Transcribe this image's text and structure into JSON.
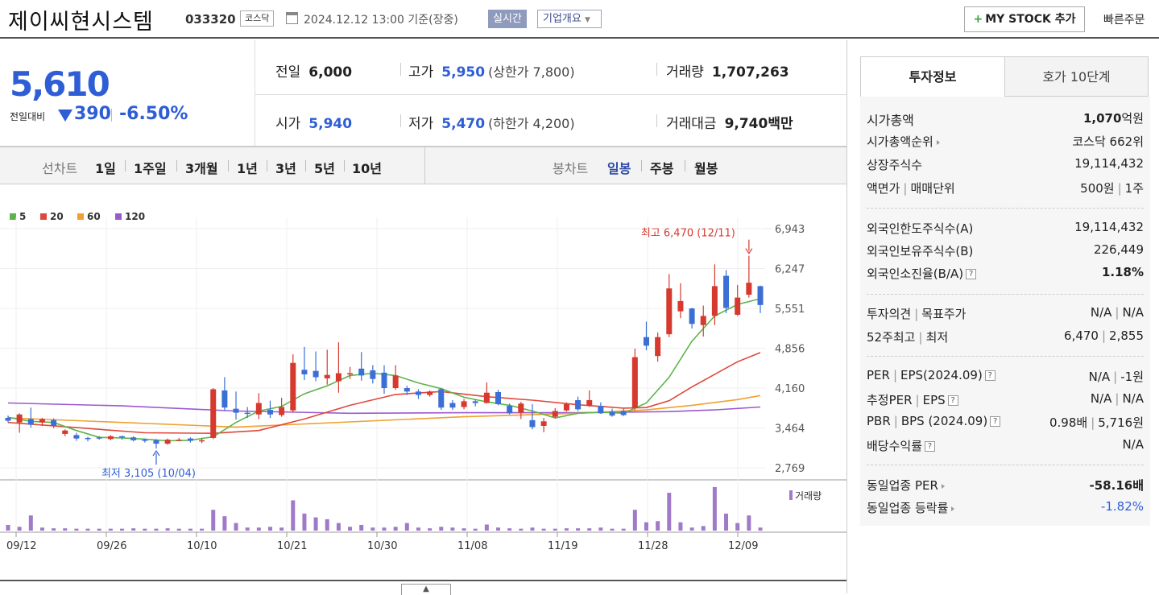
{
  "header": {
    "company_name": "제이씨현시스템",
    "code": "033320",
    "market": "코스닥",
    "date": "2024.12.12 13:00 기준(장중)",
    "realtime": "실시간",
    "company_info": "기업개요",
    "mystock": "MY STOCK 추가",
    "quick_order": "빠른주문"
  },
  "price": {
    "current": "5,610",
    "change_label": "전일대비",
    "change": "390",
    "change_pct": "-6.50%",
    "prev_close_label": "전일",
    "prev_close": "6,000",
    "high_label": "고가",
    "high": "5,950",
    "upper_limit": "(상한가 7,800)",
    "volume_label": "거래량",
    "volume": "1,707,263",
    "open_label": "시가",
    "open": "5,940",
    "low_label": "저가",
    "low": "5,470",
    "lower_limit": "(하한가 4,200)",
    "amount_label": "거래대금",
    "amount": "9,740",
    "amount_unit": "백만"
  },
  "period_bar": {
    "line_label": "선차트",
    "line_periods": [
      "1일",
      "1주일",
      "3개월",
      "1년",
      "3년",
      "5년",
      "10년"
    ],
    "candle_label": "봉차트",
    "candle_periods": [
      "일봉",
      "주봉",
      "월봉"
    ],
    "active_candle": "일봉"
  },
  "legend": [
    "5",
    "20",
    "60",
    "120"
  ],
  "legend_colors": [
    "#5db44b",
    "#e0473c",
    "#f0a030",
    "#9b59d0"
  ],
  "colors": {
    "up": "#d63a2f",
    "down": "#3b6fd6",
    "volume": "#a07ac8"
  },
  "chart_data": {
    "type": "candlestick",
    "title": "",
    "x_labels": [
      "09/12",
      "09/26",
      "10/10",
      "10/21",
      "10/30",
      "11/08",
      "11/19",
      "11/28",
      "12/09"
    ],
    "y_ticks": [
      "6,943",
      "6,247",
      "5,551",
      "4,856",
      "4,160",
      "3,464",
      "2,769"
    ],
    "ylim": [
      2769,
      6943
    ],
    "high_annotation": "최고 6,470 (12/11)",
    "low_annotation": "최저 3,105 (10/04)",
    "volume_label": "거래량",
    "candles": [
      {
        "o": 3640,
        "c": 3590,
        "h": 3680,
        "l": 3560,
        "v": 15
      },
      {
        "o": 3560,
        "c": 3700,
        "h": 3720,
        "l": 3380,
        "v": 10
      },
      {
        "o": 3620,
        "c": 3520,
        "h": 3820,
        "l": 3470,
        "v": 40
      },
      {
        "o": 3560,
        "c": 3620,
        "h": 3640,
        "l": 3500,
        "v": 8
      },
      {
        "o": 3600,
        "c": 3500,
        "h": 3630,
        "l": 3460,
        "v": 6
      },
      {
        "o": 3360,
        "c": 3420,
        "h": 3440,
        "l": 3320,
        "v": 6
      },
      {
        "o": 3340,
        "c": 3280,
        "h": 3380,
        "l": 3240,
        "v": 5
      },
      {
        "o": 3290,
        "c": 3270,
        "h": 3310,
        "l": 3230,
        "v": 5
      },
      {
        "o": 3300,
        "c": 3280,
        "h": 3320,
        "l": 3260,
        "v": 5
      },
      {
        "o": 3270,
        "c": 3320,
        "h": 3340,
        "l": 3250,
        "v": 5
      },
      {
        "o": 3320,
        "c": 3300,
        "h": 3330,
        "l": 3260,
        "v": 5
      },
      {
        "o": 3300,
        "c": 3250,
        "h": 3320,
        "l": 3230,
        "v": 6
      },
      {
        "o": 3260,
        "c": 3240,
        "h": 3280,
        "l": 3210,
        "v": 5
      },
      {
        "o": 3250,
        "c": 3190,
        "h": 3270,
        "l": 3105,
        "v": 5
      },
      {
        "o": 3190,
        "c": 3260,
        "h": 3280,
        "l": 3170,
        "v": 6
      },
      {
        "o": 3260,
        "c": 3260,
        "h": 3290,
        "l": 3240,
        "v": 5
      },
      {
        "o": 3280,
        "c": 3240,
        "h": 3300,
        "l": 3210,
        "v": 5
      },
      {
        "o": 3240,
        "c": 3250,
        "h": 3280,
        "l": 3200,
        "v": 5
      },
      {
        "o": 3290,
        "c": 4140,
        "h": 4160,
        "l": 3270,
        "v": 55
      },
      {
        "o": 4120,
        "c": 3820,
        "h": 4350,
        "l": 3760,
        "v": 38
      },
      {
        "o": 3800,
        "c": 3730,
        "h": 4100,
        "l": 3610,
        "v": 20
      },
      {
        "o": 3730,
        "c": 3720,
        "h": 3830,
        "l": 3640,
        "v": 8
      },
      {
        "o": 3700,
        "c": 3900,
        "h": 4070,
        "l": 3620,
        "v": 8
      },
      {
        "o": 3780,
        "c": 3700,
        "h": 3940,
        "l": 3640,
        "v": 10
      },
      {
        "o": 3690,
        "c": 3830,
        "h": 3990,
        "l": 3660,
        "v": 8
      },
      {
        "o": 3770,
        "c": 4600,
        "h": 4750,
        "l": 3730,
        "v": 80
      },
      {
        "o": 4480,
        "c": 4400,
        "h": 4880,
        "l": 4300,
        "v": 45
      },
      {
        "o": 4460,
        "c": 4350,
        "h": 4800,
        "l": 4280,
        "v": 35
      },
      {
        "o": 4330,
        "c": 4390,
        "h": 4830,
        "l": 4220,
        "v": 30
      },
      {
        "o": 4280,
        "c": 4420,
        "h": 4960,
        "l": 4080,
        "v": 20
      },
      {
        "o": 4420,
        "c": 4420,
        "h": 4530,
        "l": 4320,
        "v": 10
      },
      {
        "o": 4500,
        "c": 4380,
        "h": 4790,
        "l": 4290,
        "v": 15
      },
      {
        "o": 4470,
        "c": 4320,
        "h": 4560,
        "l": 4240,
        "v": 8
      },
      {
        "o": 4430,
        "c": 4160,
        "h": 4560,
        "l": 4060,
        "v": 8
      },
      {
        "o": 4160,
        "c": 4380,
        "h": 4560,
        "l": 4130,
        "v": 10
      },
      {
        "o": 4160,
        "c": 4100,
        "h": 4200,
        "l": 4040,
        "v": 20
      },
      {
        "o": 4100,
        "c": 4040,
        "h": 4140,
        "l": 3970,
        "v": 8
      },
      {
        "o": 4040,
        "c": 4100,
        "h": 4120,
        "l": 4010,
        "v": 6
      },
      {
        "o": 4140,
        "c": 3820,
        "h": 4160,
        "l": 3780,
        "v": 10
      },
      {
        "o": 3900,
        "c": 3820,
        "h": 3950,
        "l": 3780,
        "v": 8
      },
      {
        "o": 3830,
        "c": 3930,
        "h": 3970,
        "l": 3790,
        "v": 6
      },
      {
        "o": 3930,
        "c": 3900,
        "h": 3960,
        "l": 3840,
        "v": 5
      },
      {
        "o": 3900,
        "c": 4080,
        "h": 4260,
        "l": 3890,
        "v": 16
      },
      {
        "o": 4090,
        "c": 3880,
        "h": 4130,
        "l": 3860,
        "v": 8
      },
      {
        "o": 3850,
        "c": 3720,
        "h": 3890,
        "l": 3700,
        "v": 6
      },
      {
        "o": 3730,
        "c": 3890,
        "h": 3920,
        "l": 3620,
        "v": 5
      },
      {
        "o": 3600,
        "c": 3480,
        "h": 3880,
        "l": 3440,
        "v": 8
      },
      {
        "o": 3500,
        "c": 3580,
        "h": 3640,
        "l": 3390,
        "v": 5
      },
      {
        "o": 3660,
        "c": 3760,
        "h": 3810,
        "l": 3630,
        "v": 5
      },
      {
        "o": 3770,
        "c": 3880,
        "h": 3910,
        "l": 3750,
        "v": 6
      },
      {
        "o": 3950,
        "c": 3790,
        "h": 4010,
        "l": 3760,
        "v": 6
      },
      {
        "o": 3850,
        "c": 3950,
        "h": 4120,
        "l": 3830,
        "v": 6
      },
      {
        "o": 3850,
        "c": 3720,
        "h": 3910,
        "l": 3710,
        "v": 8
      },
      {
        "o": 3750,
        "c": 3680,
        "h": 3800,
        "l": 3660,
        "v": 5
      },
      {
        "o": 3760,
        "c": 3690,
        "h": 3800,
        "l": 3670,
        "v": 5
      },
      {
        "o": 3810,
        "c": 4700,
        "h": 4850,
        "l": 3770,
        "v": 55
      },
      {
        "o": 5050,
        "c": 4900,
        "h": 5320,
        "l": 4820,
        "v": 22
      },
      {
        "o": 4720,
        "c": 5050,
        "h": 5130,
        "l": 4620,
        "v": 25
      },
      {
        "o": 5100,
        "c": 5900,
        "h": 6150,
        "l": 5050,
        "v": 100
      },
      {
        "o": 5500,
        "c": 5680,
        "h": 5990,
        "l": 5380,
        "v": 22
      },
      {
        "o": 5550,
        "c": 5280,
        "h": 5560,
        "l": 5200,
        "v": 8
      },
      {
        "o": 5260,
        "c": 5420,
        "h": 5600,
        "l": 5060,
        "v": 12
      },
      {
        "o": 5420,
        "c": 5940,
        "h": 6320,
        "l": 5260,
        "v": 115
      },
      {
        "o": 6120,
        "c": 5560,
        "h": 6220,
        "l": 5470,
        "v": 45
      },
      {
        "o": 5440,
        "c": 5740,
        "h": 5960,
        "l": 5420,
        "v": 20
      },
      {
        "o": 5790,
        "c": 6000,
        "h": 6470,
        "l": 5740,
        "v": 40
      },
      {
        "o": 5940,
        "c": 5610,
        "h": 5950,
        "l": 5470,
        "v": 8
      }
    ],
    "ma5": [
      [
        0,
        3650
      ],
      [
        2,
        3580
      ],
      [
        4,
        3560
      ],
      [
        6,
        3420
      ],
      [
        8,
        3300
      ],
      [
        10,
        3290
      ],
      [
        12,
        3270
      ],
      [
        14,
        3240
      ],
      [
        16,
        3250
      ],
      [
        18,
        3310
      ],
      [
        20,
        3560
      ],
      [
        22,
        3760
      ],
      [
        24,
        3840
      ],
      [
        26,
        4060
      ],
      [
        28,
        4200
      ],
      [
        30,
        4380
      ],
      [
        32,
        4420
      ],
      [
        34,
        4380
      ],
      [
        36,
        4250
      ],
      [
        38,
        4150
      ],
      [
        40,
        4000
      ],
      [
        42,
        3920
      ],
      [
        44,
        3860
      ],
      [
        46,
        3760
      ],
      [
        48,
        3640
      ],
      [
        50,
        3720
      ],
      [
        52,
        3740
      ],
      [
        54,
        3720
      ],
      [
        56,
        3900
      ],
      [
        58,
        4350
      ],
      [
        60,
        4980
      ],
      [
        62,
        5420
      ],
      [
        64,
        5620
      ],
      [
        66,
        5720
      ]
    ],
    "ma20": [
      [
        0,
        3560
      ],
      [
        6,
        3470
      ],
      [
        12,
        3380
      ],
      [
        18,
        3370
      ],
      [
        22,
        3420
      ],
      [
        26,
        3620
      ],
      [
        30,
        3860
      ],
      [
        34,
        4050
      ],
      [
        38,
        4100
      ],
      [
        42,
        4010
      ],
      [
        46,
        3950
      ],
      [
        50,
        3870
      ],
      [
        54,
        3810
      ],
      [
        56,
        3820
      ],
      [
        58,
        3940
      ],
      [
        60,
        4180
      ],
      [
        62,
        4400
      ],
      [
        64,
        4620
      ],
      [
        66,
        4780
      ]
    ],
    "ma60": [
      [
        0,
        3640
      ],
      [
        10,
        3560
      ],
      [
        20,
        3480
      ],
      [
        30,
        3570
      ],
      [
        40,
        3660
      ],
      [
        50,
        3720
      ],
      [
        56,
        3780
      ],
      [
        60,
        3860
      ],
      [
        64,
        3960
      ],
      [
        66,
        4030
      ]
    ],
    "ma120": [
      [
        0,
        3900
      ],
      [
        10,
        3850
      ],
      [
        20,
        3760
      ],
      [
        30,
        3720
      ],
      [
        40,
        3730
      ],
      [
        50,
        3730
      ],
      [
        58,
        3750
      ],
      [
        62,
        3780
      ],
      [
        66,
        3830
      ]
    ]
  },
  "tabs": [
    "투자정보",
    "호가 10단계"
  ],
  "info": {
    "market_cap_label": "시가총액",
    "market_cap": "1,070",
    "market_cap_unit": "억원",
    "rank_label": "시가총액순위",
    "rank": "코스닥 662위",
    "shares_label": "상장주식수",
    "shares": "19,114,432",
    "par_label": "액면가",
    "trade_unit_label": "매매단위",
    "par": "500원",
    "trade_unit": "1주",
    "foreign_limit_label": "외국인한도주식수(A)",
    "foreign_limit": "19,114,432",
    "foreign_hold_label": "외국인보유주식수(B)",
    "foreign_hold": "226,449",
    "foreign_ratio_label": "외국인소진율(B/A)",
    "foreign_ratio": "1.18%",
    "opinion_label": "투자의견",
    "target_label": "목표주가",
    "opinion": "N/A",
    "target": "N/A",
    "w52_high_label": "52주최고",
    "w52_low_label": "최저",
    "w52_high": "6,470",
    "w52_low": "2,855",
    "per_label": "PER",
    "eps_label": "EPS(2024.09)",
    "per": "N/A",
    "eps": "-1원",
    "est_per_label": "추정PER",
    "est_eps_label": "EPS",
    "est_per": "N/A",
    "est_eps": "N/A",
    "pbr_label": "PBR",
    "bps_label": "BPS (2024.09)",
    "pbr": "0.98배",
    "bps": "5,716원",
    "div_label": "배당수익률",
    "div": "N/A",
    "sector_per_label": "동일업종 PER",
    "sector_per": "-58.16배",
    "sector_rate_label": "동일업종 등락률",
    "sector_rate": "-1.82%"
  }
}
